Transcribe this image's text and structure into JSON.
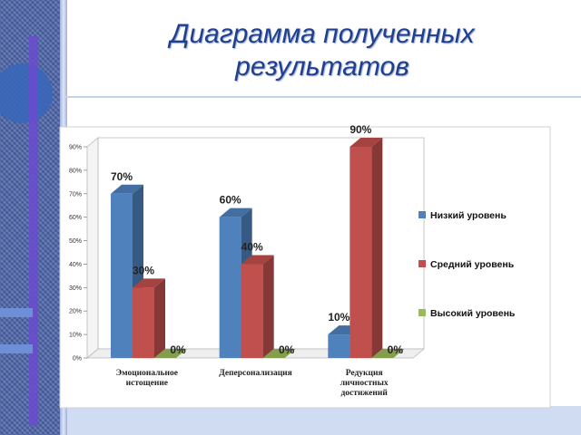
{
  "slide": {
    "title_line1": "Диаграмма  полученных",
    "title_line2": "результатов"
  },
  "colors": {
    "title": "#1f3f8f",
    "side_band": "#4b63a8",
    "bottom_band": "#cfdcf1"
  },
  "chart_data": {
    "type": "bar",
    "title": "",
    "xlabel": "",
    "ylabel": "",
    "categories": [
      [
        "Эмоциональное",
        "истощение"
      ],
      [
        "Деперсонализация"
      ],
      [
        "Редукция",
        "личностных",
        "достижений"
      ]
    ],
    "series": [
      {
        "name": "Низкий уровень",
        "color": "#4f81bd",
        "values": [
          70,
          60,
          10
        ]
      },
      {
        "name": "Средний уровень",
        "color": "#c0504d",
        "values": [
          30,
          40,
          90
        ]
      },
      {
        "name": "Высокий уровень",
        "color": "#9bbb59",
        "values": [
          0,
          0,
          0
        ]
      }
    ],
    "value_suffix": "%",
    "ylim": [
      0,
      90
    ],
    "yticks": [
      0,
      10,
      20,
      30,
      40,
      50,
      60,
      70,
      80,
      90
    ],
    "grid": false,
    "style": "3d-column",
    "legend_position": "right"
  }
}
